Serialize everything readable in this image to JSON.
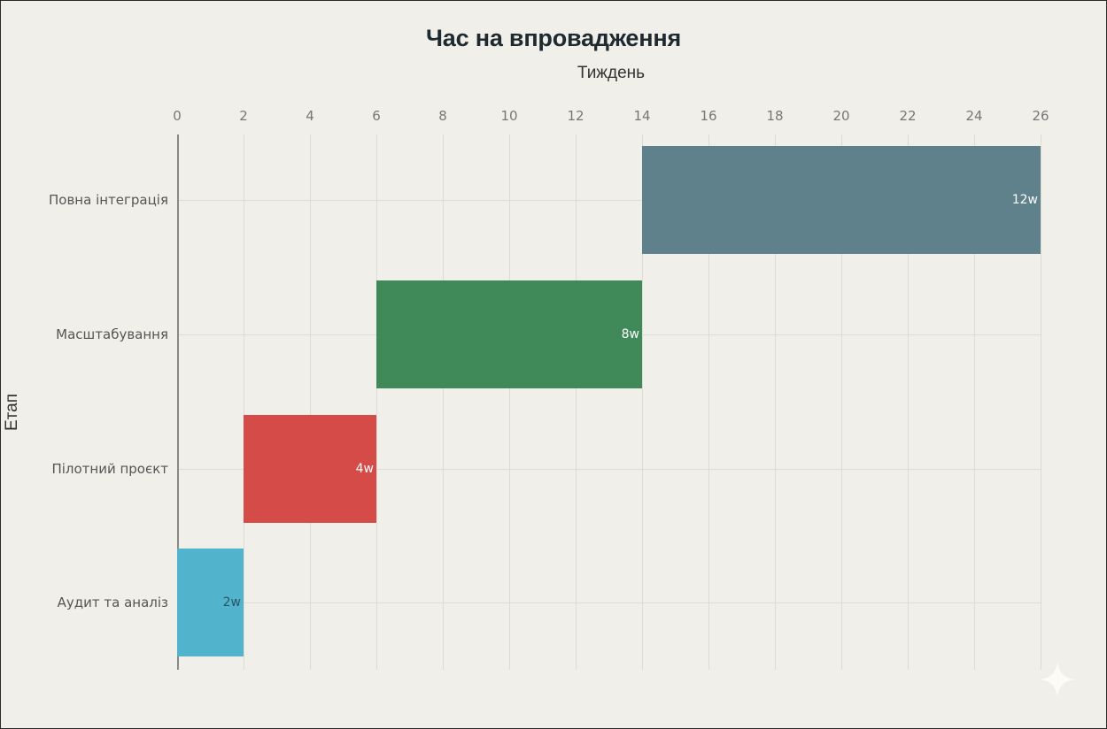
{
  "chart_data": {
    "type": "bar",
    "orientation": "horizontal-gantt",
    "title": "Час на впровадження",
    "xlabel": "Тиждень",
    "ylabel": "Етап",
    "xlim": [
      0,
      26
    ],
    "x_ticks": [
      "0",
      "2",
      "4",
      "6",
      "8",
      "10",
      "12",
      "14",
      "16",
      "18",
      "20",
      "22",
      "24",
      "26"
    ],
    "x_axis_position": "top",
    "grid": true,
    "legend": null,
    "categories": [
      "Повна інтеграція",
      "Масштабування",
      "Пілотний проєкт",
      "Аудит та аналіз"
    ],
    "series": [
      {
        "name": "Етапи",
        "bars": [
          {
            "category": "Повна інтеграція",
            "start": 14,
            "end": 26,
            "duration": 12,
            "label": "12w",
            "color": "#5f818b"
          },
          {
            "category": "Масштабування",
            "start": 6,
            "end": 14,
            "duration": 8,
            "label": "8w",
            "color": "#3f8a58"
          },
          {
            "category": "Пілотний проєкт",
            "start": 2,
            "end": 6,
            "duration": 4,
            "label": "4w",
            "color": "#d44b47"
          },
          {
            "category": "Аудит та аналіз",
            "start": 0,
            "end": 2,
            "duration": 2,
            "label": "2w",
            "color": "#51b3cc"
          }
        ]
      }
    ]
  },
  "watermark": {
    "icon": "sparkle-icon"
  }
}
